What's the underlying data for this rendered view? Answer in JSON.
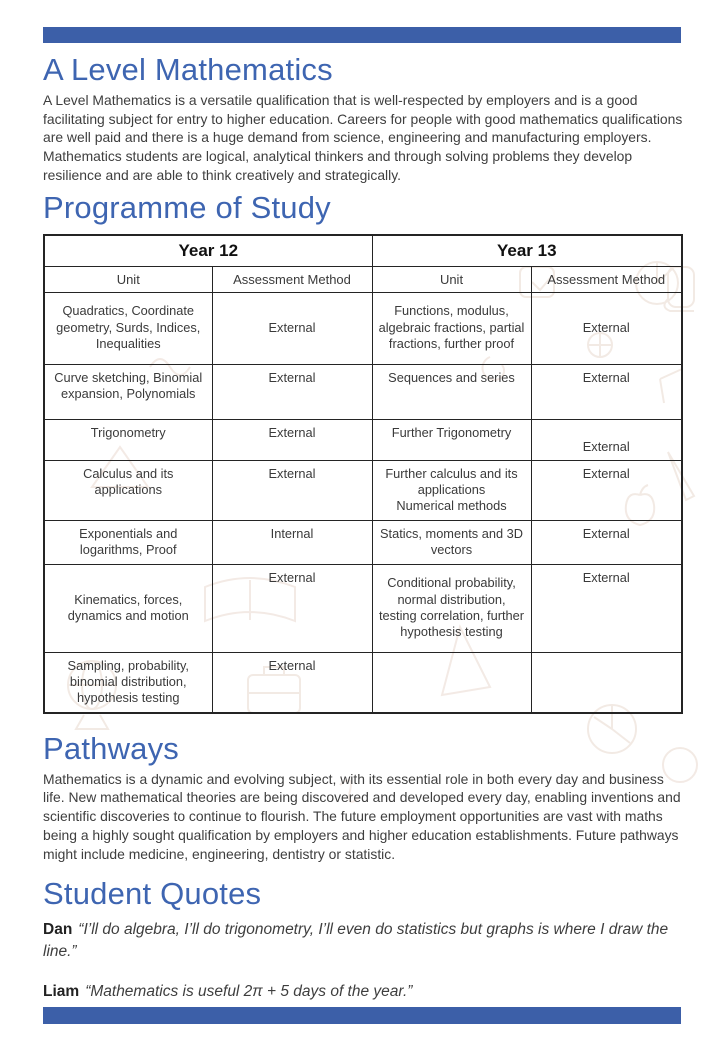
{
  "page": {
    "accent_color": "#3c5fa8",
    "heading_color": "#3e65b1"
  },
  "header": {
    "title": "A Level Mathematics",
    "intro": "A Level Mathematics is a versatile qualification that is well-respected by employers and is a good facilitating subject for entry to higher education. Careers for people with good mathematics qualifications are well paid and there is a huge demand from science, engineering and manufacturing employers. Mathematics students are logical, analytical thinkers and through solving problems they develop resilience and are able to think creatively and strategically."
  },
  "programme": {
    "title": "Programme of Study",
    "table": {
      "year_groups": [
        "Year 12",
        "Year 13"
      ],
      "column_headers": [
        "Unit",
        "Assessment Method",
        "Unit",
        "Assessment Method"
      ],
      "rows": [
        [
          "Quadratics, Coordinate geometry, Surds, Indices, Inequalities",
          "External",
          "Functions, modulus, algebraic fractions, partial fractions, further proof",
          "External"
        ],
        [
          "Curve sketching, Binomial expansion, Polynomials",
          "External",
          "Sequences and series",
          "External"
        ],
        [
          "Trigonometry",
          "External",
          "Further Trigonometry",
          "External"
        ],
        [
          "Calculus and its applications",
          "External",
          "Further calculus and its applications\nNumerical methods",
          "External"
        ],
        [
          "Exponentials and logarithms, Proof",
          "Internal",
          "Statics, moments and 3D vectors",
          "External"
        ],
        [
          "Kinematics, forces, dynamics and motion",
          "External",
          "Conditional probability, normal distribution, testing correlation, further hypothesis testing",
          "External"
        ],
        [
          "Sampling, probability, binomial distribution, hypothesis testing",
          "External",
          "",
          ""
        ]
      ]
    }
  },
  "pathways": {
    "title": "Pathways",
    "body": "Mathematics is a dynamic and evolving subject, with its essential role in both every day and business life. New mathematical theories are being discovered and developed every day, enabling inventions and scientific discoveries to continue to flourish. The future employment opportunities are vast with maths being a highly sought qualification by employers and higher education establishments. Future pathways might include medicine, engineering, dentistry or statistic."
  },
  "student_quotes": {
    "title": "Student Quotes",
    "quotes": [
      {
        "name": "Dan",
        "quote": "“I’ll do algebra, I’ll do trigonometry, I’ll even do statistics but graphs is where I draw the line.”"
      },
      {
        "name": "Liam",
        "quote": "“Mathematics is useful 2π + 5 days of the year.”"
      }
    ]
  }
}
